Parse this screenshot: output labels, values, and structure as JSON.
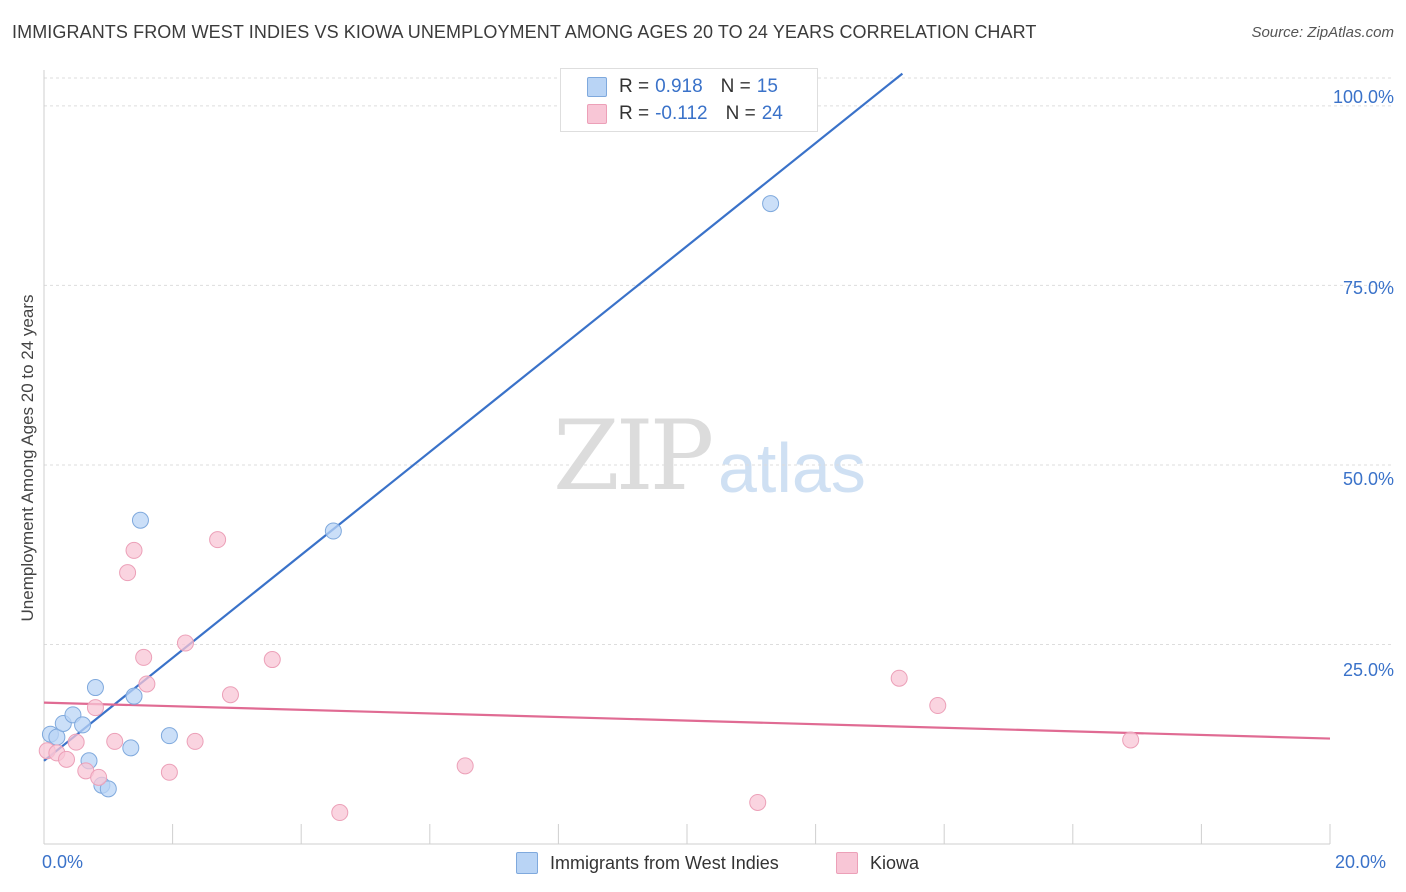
{
  "header": {
    "title": "IMMIGRANTS FROM WEST INDIES VS KIOWA UNEMPLOYMENT AMONG AGES 20 TO 24 YEARS CORRELATION CHART",
    "source": "Source: ZipAtlas.com"
  },
  "watermark": {
    "zip": "ZIP",
    "atlas": "atlas"
  },
  "legend": {
    "rows": [
      {
        "r_label": "R =",
        "r_value": "0.918",
        "n_label": "N =",
        "n_value": "15",
        "color": "#b9d4f5"
      },
      {
        "r_label": "R =",
        "r_value": "-0.112",
        "n_label": "N =",
        "n_value": "24",
        "color": "#f8c6d6"
      }
    ]
  },
  "bottom_legend": {
    "items": [
      {
        "label": "Immigrants from West Indies",
        "color": "#b9d4f5"
      },
      {
        "label": "Kiowa",
        "color": "#f8c6d6"
      }
    ]
  },
  "chart_data": {
    "type": "scatter",
    "title": "IMMIGRANTS FROM WEST INDIES VS KIOWA UNEMPLOYMENT AMONG AGES 20 TO 24 YEARS CORRELATION CHART",
    "xlabel": "",
    "ylabel": "Unemployment Among Ages 20 to 24 years",
    "xlim": [
      0,
      20
    ],
    "ylim": [
      0,
      105
    ],
    "x_tick_labels": [
      "0.0%",
      "20.0%"
    ],
    "y_ticks": [
      25,
      50,
      75,
      100
    ],
    "y_tick_labels": [
      "25.0%",
      "50.0%",
      "75.0%",
      "100.0%"
    ],
    "grid": true,
    "series": [
      {
        "name": "Immigrants from West Indies",
        "color": "#b9d4f5",
        "stroke": "#7fa9dd",
        "line_color": "#3a72c9",
        "trend": {
          "x": [
            0.0,
            13.35
          ],
          "y": [
            8.8,
            104.5
          ]
        },
        "points": [
          {
            "x": 0.1,
            "y": 12.5
          },
          {
            "x": 0.2,
            "y": 12.1
          },
          {
            "x": 0.3,
            "y": 14.0
          },
          {
            "x": 0.45,
            "y": 15.2
          },
          {
            "x": 0.6,
            "y": 13.8
          },
          {
            "x": 0.7,
            "y": 8.8
          },
          {
            "x": 0.8,
            "y": 19.0
          },
          {
            "x": 0.9,
            "y": 5.4
          },
          {
            "x": 1.0,
            "y": 4.9
          },
          {
            "x": 1.35,
            "y": 10.6
          },
          {
            "x": 1.4,
            "y": 17.8
          },
          {
            "x": 1.5,
            "y": 42.3
          },
          {
            "x": 1.95,
            "y": 12.3
          },
          {
            "x": 4.5,
            "y": 40.8
          },
          {
            "x": 11.3,
            "y": 86.4
          }
        ]
      },
      {
        "name": "Kiowa",
        "color": "#f8c6d6",
        "stroke": "#eca0b8",
        "line_color": "#e06b93",
        "trend": {
          "x": [
            0.0,
            20.0
          ],
          "y": [
            16.9,
            11.9
          ]
        },
        "points": [
          {
            "x": 0.05,
            "y": 10.2
          },
          {
            "x": 0.2,
            "y": 9.9
          },
          {
            "x": 0.35,
            "y": 9.0
          },
          {
            "x": 0.5,
            "y": 11.4
          },
          {
            "x": 0.65,
            "y": 7.4
          },
          {
            "x": 0.8,
            "y": 16.2
          },
          {
            "x": 0.85,
            "y": 6.5
          },
          {
            "x": 1.1,
            "y": 11.5
          },
          {
            "x": 1.3,
            "y": 35.0
          },
          {
            "x": 1.4,
            "y": 38.1
          },
          {
            "x": 1.55,
            "y": 23.2
          },
          {
            "x": 1.6,
            "y": 19.5
          },
          {
            "x": 1.95,
            "y": 7.2
          },
          {
            "x": 2.2,
            "y": 25.2
          },
          {
            "x": 2.35,
            "y": 11.5
          },
          {
            "x": 2.7,
            "y": 39.6
          },
          {
            "x": 2.9,
            "y": 18.0
          },
          {
            "x": 3.55,
            "y": 22.9
          },
          {
            "x": 4.6,
            "y": 1.6
          },
          {
            "x": 6.55,
            "y": 8.1
          },
          {
            "x": 11.1,
            "y": 3.0
          },
          {
            "x": 13.3,
            "y": 20.3
          },
          {
            "x": 13.9,
            "y": 16.5
          },
          {
            "x": 16.9,
            "y": 11.7
          }
        ]
      }
    ]
  }
}
